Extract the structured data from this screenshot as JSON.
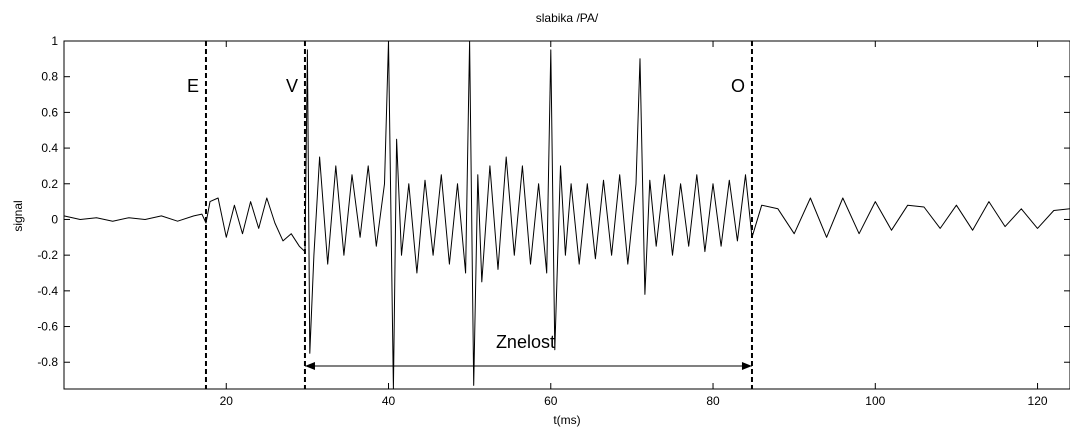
{
  "chart_data": {
    "type": "line",
    "title": "slabika /PA/",
    "xlabel": "t(ms)",
    "ylabel": "signal",
    "xlim": [
      0,
      124
    ],
    "ylim": [
      -0.95,
      1
    ],
    "grid": false,
    "x_ticks": [
      20,
      40,
      60,
      80,
      100,
      120
    ],
    "x_tick_labels": [
      "20",
      "40",
      "60",
      "80",
      "100",
      "120"
    ],
    "y_ticks": [
      -0.8,
      -0.6,
      -0.4,
      -0.2,
      0,
      0.2,
      0.4,
      0.6,
      0.8,
      1
    ],
    "y_tick_labels": [
      "-0.8",
      "-0.6",
      "-0.4",
      "-0.2",
      "0",
      "0.2",
      "0.4",
      "0.6",
      "0.8",
      "1"
    ],
    "markers": [
      {
        "label": "E",
        "x": 17.5
      },
      {
        "label": "V",
        "x": 29.7
      },
      {
        "label": "O",
        "x": 84.8
      }
    ],
    "annotation": {
      "label": "Znelost",
      "x_start": 29.7,
      "x_end": 84.8,
      "y": -0.88
    },
    "series": [
      {
        "x": [
          0,
          2,
          4,
          6,
          8,
          10,
          12,
          14,
          16,
          17,
          17.5,
          18,
          19,
          20,
          21,
          22,
          23,
          24,
          25,
          26,
          27,
          28,
          29,
          29.7,
          30,
          30.3,
          30.8,
          31.5,
          32.5,
          33.5,
          34.5,
          35.5,
          36.5,
          37.5,
          38.5,
          39.5,
          40,
          40.6,
          41,
          41.6,
          42.5,
          43.5,
          44.5,
          45.5,
          46.5,
          47.5,
          48.5,
          49.5,
          50,
          50.5,
          51,
          51.5,
          52.5,
          53.5,
          54.5,
          55.5,
          56.5,
          57.5,
          58.5,
          59.5,
          60,
          60.5,
          61.2,
          61.8,
          62.5,
          63.5,
          64.5,
          65.5,
          66.5,
          67.5,
          68.5,
          69.5,
          70.5,
          71,
          71.6,
          72.2,
          73,
          74,
          75,
          76,
          77,
          78,
          79,
          80,
          81,
          82,
          83,
          84,
          84.8,
          86,
          88,
          90,
          92,
          94,
          96,
          98,
          100,
          102,
          104,
          106,
          108,
          110,
          112,
          114,
          116,
          118,
          120,
          122,
          124
        ],
        "y": [
          0.02,
          0,
          0.01,
          -0.01,
          0.01,
          0,
          0.02,
          -0.01,
          0.02,
          0.03,
          -0.02,
          0.1,
          0.12,
          -0.1,
          0.08,
          -0.08,
          0.1,
          -0.05,
          0.12,
          -0.02,
          -0.12,
          -0.08,
          -0.15,
          -0.18,
          0.95,
          -0.75,
          -0.2,
          0.35,
          -0.25,
          0.3,
          -0.2,
          0.25,
          -0.1,
          0.3,
          -0.15,
          0.2,
          1.0,
          -0.95,
          0.45,
          -0.2,
          0.2,
          -0.3,
          0.22,
          -0.2,
          0.25,
          -0.25,
          0.2,
          -0.3,
          1.0,
          -0.93,
          0.25,
          -0.35,
          0.3,
          -0.28,
          0.35,
          -0.2,
          0.3,
          -0.25,
          0.2,
          -0.3,
          0.95,
          -0.73,
          0.3,
          -0.2,
          0.2,
          -0.25,
          0.2,
          -0.22,
          0.22,
          -0.2,
          0.25,
          -0.25,
          0.2,
          0.9,
          -0.42,
          0.22,
          -0.15,
          0.25,
          -0.2,
          0.2,
          -0.15,
          0.25,
          -0.18,
          0.2,
          -0.15,
          0.22,
          -0.12,
          0.25,
          -0.1,
          0.08,
          0.06,
          -0.08,
          0.12,
          -0.1,
          0.12,
          -0.08,
          0.1,
          -0.06,
          0.08,
          0.07,
          -0.05,
          0.08,
          -0.06,
          0.1,
          -0.04,
          0.06,
          -0.05,
          0.05,
          0.06
        ]
      }
    ]
  }
}
